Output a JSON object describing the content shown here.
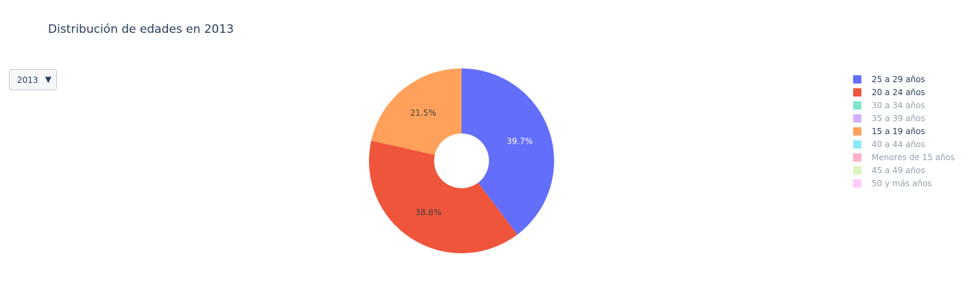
{
  "title": "Distribución de edades en 2013",
  "dropdown": {
    "selected": "2013",
    "arrow": "▼"
  },
  "chart_data": {
    "type": "pie",
    "title": "Distribución de edades en 2013",
    "hole": true,
    "legend_position": "right",
    "slices": [
      {
        "label": "25 a 29 años",
        "value": 39.7,
        "color": "#636efa",
        "text": "39.7%",
        "visible": true
      },
      {
        "label": "20 a 24 años",
        "value": 38.8,
        "color": "#ef553b",
        "text": "38.8%",
        "visible": true
      },
      {
        "label": "30 a 34 años",
        "value": 0,
        "color": "#00cc96",
        "text": "",
        "visible": false
      },
      {
        "label": "35 a 39 años",
        "value": 0,
        "color": "#ab63fa",
        "text": "",
        "visible": false
      },
      {
        "label": "15 a 19 años",
        "value": 21.5,
        "color": "#ffa15a",
        "text": "21.5%",
        "visible": true
      },
      {
        "label": "40 a 44 años",
        "value": 0,
        "color": "#19d3f3",
        "text": "",
        "visible": false
      },
      {
        "label": "Menores de 15 años",
        "value": 0,
        "color": "#ff6692",
        "text": "",
        "visible": false
      },
      {
        "label": "45 a 49 años",
        "value": 0,
        "color": "#b6e880",
        "text": "",
        "visible": false
      },
      {
        "label": "50 y más años",
        "value": 0,
        "color": "#ff97ff",
        "text": "",
        "visible": false
      }
    ]
  }
}
